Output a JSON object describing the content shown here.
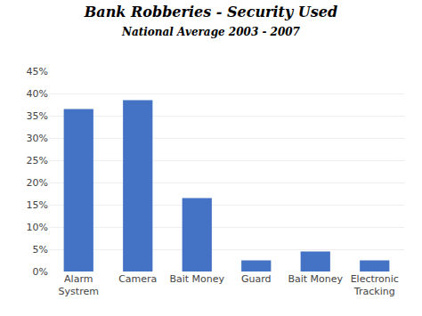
{
  "chart_data": {
    "type": "bar",
    "title": "Bank Robberies - Security Used",
    "subtitle": "National Average 2003 - 2007",
    "categories": [
      "Alarm\nSystrem",
      "Camera",
      "Bait Money",
      "Guard",
      "Bait Money",
      "Electronic\nTracking"
    ],
    "values": [
      36.5,
      38.5,
      16.5,
      2.5,
      4.5,
      2.5
    ],
    "color": "#4472C4",
    "ylim": [
      0,
      45
    ],
    "yticks": [
      {
        "value": 0,
        "label": "0%"
      },
      {
        "value": 5,
        "label": "5%"
      },
      {
        "value": 10,
        "label": "10%"
      },
      {
        "value": 15,
        "label": "15%"
      },
      {
        "value": 20,
        "label": "20%"
      },
      {
        "value": 25,
        "label": "25%"
      },
      {
        "value": 30,
        "label": "30%"
      },
      {
        "value": 35,
        "label": "35%"
      },
      {
        "value": 40,
        "label": "40%"
      },
      {
        "value": 45,
        "label": "45%"
      }
    ],
    "grid": true
  }
}
